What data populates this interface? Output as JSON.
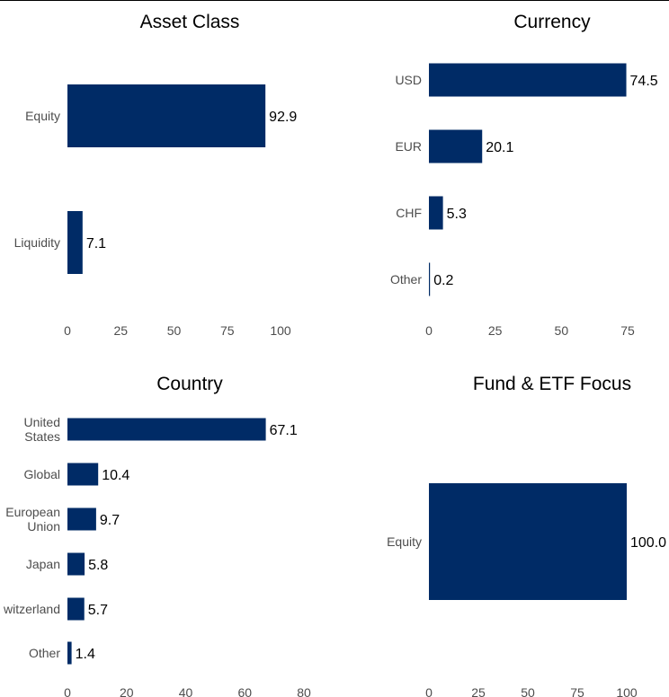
{
  "chart_data": [
    {
      "type": "bar",
      "orientation": "horizontal",
      "title": "Asset Class",
      "categories": [
        "Equity",
        "Liquidity"
      ],
      "values": [
        92.9,
        7.1
      ],
      "value_labels": [
        "92.9",
        "7.1"
      ],
      "xlim": [
        0,
        100
      ],
      "xticks": [
        0,
        25,
        50,
        75,
        100
      ],
      "grid": false,
      "bar_color": "#002b66"
    },
    {
      "type": "bar",
      "orientation": "horizontal",
      "title": "Currency",
      "categories": [
        "USD",
        "EUR",
        "CHF",
        "Other"
      ],
      "values": [
        74.5,
        20.1,
        5.3,
        0.2
      ],
      "value_labels": [
        "74.5",
        "20.1",
        "5.3",
        "0.2"
      ],
      "xlim": [
        0,
        75
      ],
      "xticks": [
        0,
        25,
        50,
        75
      ],
      "grid": false,
      "bar_color": "#002b66"
    },
    {
      "type": "bar",
      "orientation": "horizontal",
      "title": "Country",
      "categories": [
        [
          "United",
          "States"
        ],
        [
          "Global"
        ],
        [
          "European",
          "Union"
        ],
        [
          "Japan"
        ],
        [
          "witzerland"
        ],
        [
          "Other"
        ]
      ],
      "values": [
        67.1,
        10.4,
        9.7,
        5.8,
        5.7,
        1.4
      ],
      "value_labels": [
        "67.1",
        "10.4",
        "9.7",
        "5.8",
        "5.7",
        "1.4"
      ],
      "xlim": [
        0,
        80
      ],
      "xticks": [
        0,
        20,
        40,
        60,
        80
      ],
      "grid": false,
      "bar_color": "#002b66"
    },
    {
      "type": "bar",
      "orientation": "horizontal",
      "title": "Fund & ETF Focus",
      "categories": [
        "Equity"
      ],
      "values": [
        100.0
      ],
      "value_labels": [
        "100.0"
      ],
      "xlim": [
        0,
        100
      ],
      "xticks": [
        0,
        25,
        50,
        75,
        100
      ],
      "grid": false,
      "bar_color": "#002b66"
    }
  ]
}
